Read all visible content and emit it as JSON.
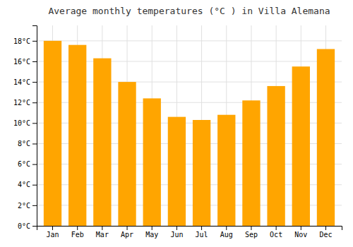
{
  "chart_data": {
    "type": "bar",
    "title": "Average monthly temperatures (°C ) in Villa Alemana",
    "categories": [
      "Jan",
      "Feb",
      "Mar",
      "Apr",
      "May",
      "Jun",
      "Jul",
      "Aug",
      "Sep",
      "Oct",
      "Nov",
      "Dec"
    ],
    "values": [
      18.0,
      17.6,
      16.3,
      14.0,
      12.4,
      10.6,
      10.3,
      10.8,
      12.2,
      13.6,
      15.5,
      17.2
    ],
    "color": "#FFA500",
    "ylim": [
      0,
      19.5
    ],
    "yticks": [
      {
        "value": 0,
        "label": "0°C"
      },
      {
        "value": 2,
        "label": "2°C"
      },
      {
        "value": 4,
        "label": "4°C"
      },
      {
        "value": 6,
        "label": "6°C"
      },
      {
        "value": 8,
        "label": "8°C"
      },
      {
        "value": 10,
        "label": "10°C"
      },
      {
        "value": 12,
        "label": "12°C"
      },
      {
        "value": 14,
        "label": "14°C"
      },
      {
        "value": 16,
        "label": "16°C"
      },
      {
        "value": 18,
        "label": "18°C"
      }
    ],
    "grid": true
  }
}
